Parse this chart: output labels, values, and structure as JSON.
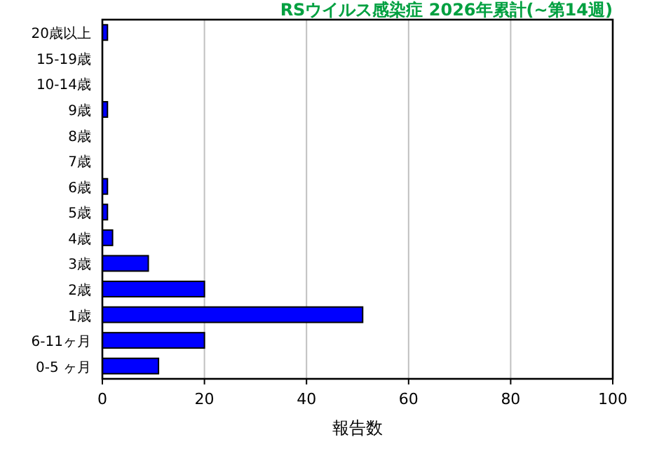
{
  "chart_data": {
    "type": "bar",
    "orientation": "horizontal",
    "title": "RSウイルス感染症 2026年累計(~第14週)",
    "xlabel": "報告数",
    "categories": [
      "20歳以上",
      "15-19歳",
      "10-14歳",
      "9歳",
      "8歳",
      "7歳",
      "6歳",
      "5歳",
      "4歳",
      "3歳",
      "2歳",
      "1歳",
      "6-11ヶ月",
      "0-5 ヶ月"
    ],
    "values": [
      1,
      0,
      0,
      1,
      0,
      0,
      1,
      1,
      2,
      9,
      20,
      51,
      20,
      11
    ],
    "color": "#0000ff",
    "xlim": [
      0,
      100
    ],
    "xticks": [
      0,
      20,
      40,
      60,
      80,
      100
    ],
    "grid": "x"
  }
}
